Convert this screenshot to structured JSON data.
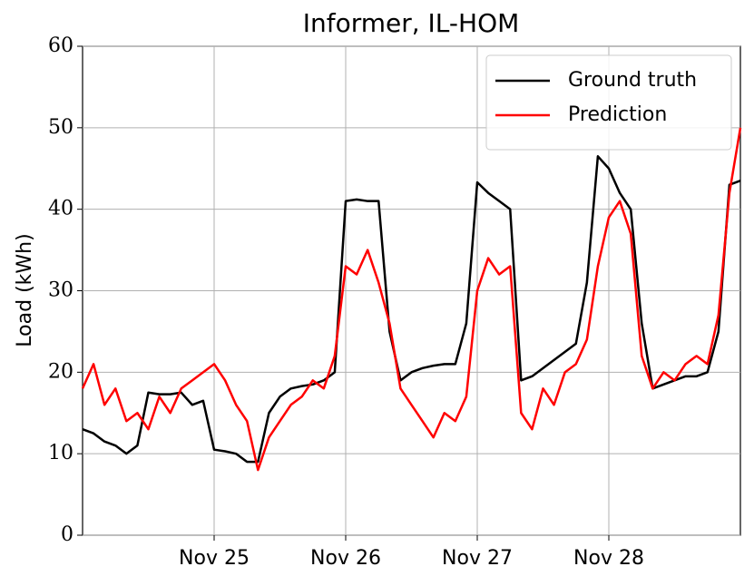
{
  "chart_data": {
    "type": "line",
    "title": "Informer, IL-HOM",
    "y_label": "Load (kWh)",
    "x": [
      0,
      2,
      4,
      6,
      8,
      10,
      12,
      14,
      16,
      18,
      20,
      22,
      24,
      26,
      28,
      30,
      32,
      34,
      36,
      38,
      40,
      42,
      44,
      46,
      48,
      50,
      52,
      54,
      56,
      58,
      60,
      62,
      64,
      66,
      68,
      70,
      72,
      74,
      76,
      78,
      80,
      82,
      84,
      86,
      88,
      90,
      92,
      94,
      96,
      98,
      100,
      102,
      104,
      106,
      108,
      110,
      112,
      114,
      116,
      118,
      120
    ],
    "xlim": [
      0,
      120
    ],
    "xticks": [
      {
        "value": 24,
        "label": "Nov 25"
      },
      {
        "value": 48,
        "label": "Nov 26"
      },
      {
        "value": 72,
        "label": "Nov 27"
      },
      {
        "value": 96,
        "label": "Nov 28"
      }
    ],
    "ylim": [
      0,
      60
    ],
    "yticks": [
      0,
      10,
      20,
      30,
      40,
      50,
      60
    ],
    "grid": true,
    "legend": "upper right",
    "series": [
      {
        "name": "Ground truth",
        "color": "#000000",
        "values": [
          13,
          12.5,
          11.5,
          11,
          10,
          11,
          17.5,
          17.3,
          17.3,
          17.5,
          16,
          16.5,
          10.5,
          10.3,
          10,
          9,
          9,
          15,
          17,
          18,
          18.3,
          18.5,
          19,
          20,
          41,
          41.2,
          41,
          41,
          25,
          19,
          20,
          20.5,
          20.8,
          21,
          21,
          26,
          43.3,
          42,
          41,
          40,
          19,
          19.5,
          20.5,
          21.5,
          22.5,
          23.5,
          31,
          46.5,
          45,
          42,
          40,
          26,
          18,
          18.5,
          19,
          19.5,
          19.5,
          20,
          25,
          43,
          43.5
        ]
      },
      {
        "name": "Prediction",
        "color": "#ff0000",
        "values": [
          18,
          21,
          16,
          18,
          14,
          15,
          13,
          17,
          15,
          18,
          19,
          20,
          21,
          19,
          16,
          14,
          8,
          12,
          14,
          16,
          17,
          19,
          18,
          22,
          33,
          32,
          35,
          31,
          26,
          18,
          16,
          14,
          12,
          15,
          14,
          17,
          30,
          34,
          32,
          33,
          15,
          13,
          18,
          16,
          20,
          21,
          24,
          33,
          39,
          41,
          37,
          22,
          18,
          20,
          19,
          21,
          22,
          21,
          27,
          42,
          50
        ]
      }
    ]
  }
}
